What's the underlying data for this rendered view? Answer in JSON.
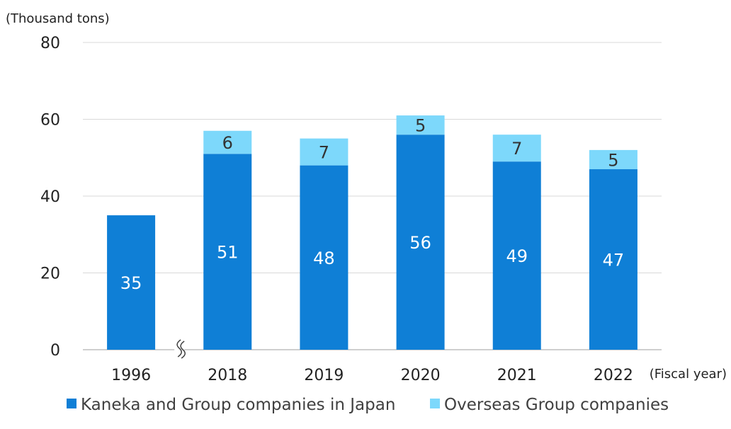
{
  "chart_data": {
    "type": "bar",
    "stacked": true,
    "categories": [
      "1996",
      "2018",
      "2019",
      "2020",
      "2021",
      "2022"
    ],
    "series": [
      {
        "name": "Kaneka and Group companies in Japan",
        "values": [
          35,
          51,
          48,
          56,
          49,
          47
        ],
        "color": "#0f7fd6"
      },
      {
        "name": "Overseas Group companies",
        "values": [
          null,
          6,
          7,
          5,
          7,
          5
        ],
        "color": "#7dd8fb"
      }
    ],
    "y_unit_label": "(Thousand tons)",
    "x_unit_label": "(Fiscal year)",
    "ylim": [
      0,
      80
    ],
    "yticks": [
      0,
      20,
      40,
      60,
      80
    ],
    "grid": true,
    "axis_break_after_category": "1996",
    "legend_position": "bottom"
  }
}
